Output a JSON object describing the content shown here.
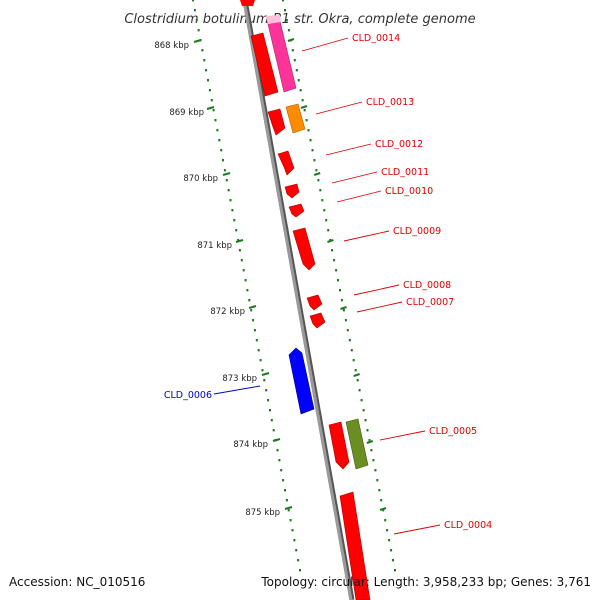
{
  "title": "Clostridium botulinum B1 str. Okra, complete genome",
  "footer": {
    "accession": "Accession: NC_010516",
    "topology": "Topology: circular; Length: 3,958,233 bp; Genes: 3,761"
  },
  "colors": {
    "backbone": "#8c8c8c",
    "tick": "#1e7a1e",
    "label_red": "#e00000",
    "label_blue": "#0000cc",
    "gene_red": "#ff0000",
    "gene_pink": "#ff3399",
    "gene_orange": "#ff8c00",
    "gene_blue": "#0000ff",
    "gene_olive": "#6b8e23"
  },
  "kbp_ticks": [
    "868 kbp",
    "869 kbp",
    "870 kbp",
    "871 kbp",
    "872 kbp",
    "873 kbp",
    "874 kbp",
    "875 kbp"
  ],
  "gene_labels": [
    {
      "name": "CLD_0014",
      "color": "red"
    },
    {
      "name": "CLD_0013",
      "color": "red"
    },
    {
      "name": "CLD_0012",
      "color": "red"
    },
    {
      "name": "CLD_0011",
      "color": "red"
    },
    {
      "name": "CLD_0010",
      "color": "red"
    },
    {
      "name": "CLD_0009",
      "color": "red"
    },
    {
      "name": "CLD_0008",
      "color": "red"
    },
    {
      "name": "CLD_0007",
      "color": "red"
    },
    {
      "name": "CLD_0006",
      "color": "blue"
    },
    {
      "name": "CLD_0005",
      "color": "red"
    },
    {
      "name": "CLD_0004",
      "color": "red"
    }
  ]
}
